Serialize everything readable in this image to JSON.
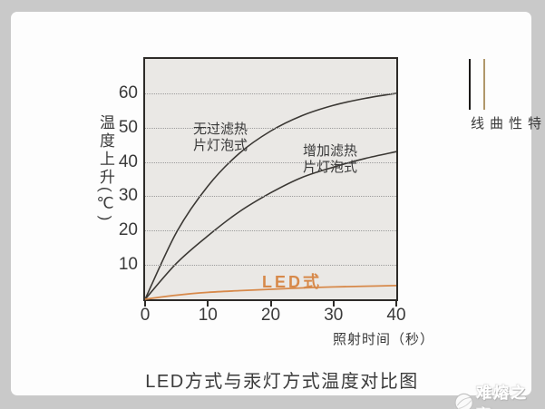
{
  "page": {
    "background": "#c9c9c9",
    "card_background": "#fdfdfd"
  },
  "chart_data": {
    "type": "line",
    "title": "LED方式与汞灯方式温度对比图",
    "xlabel": "照射时间（秒）",
    "ylabel": "温度上升(℃)",
    "xlim": [
      0,
      40
    ],
    "ylim": [
      0,
      70
    ],
    "xticks": [
      0,
      10,
      20,
      30,
      40
    ],
    "yticks": [
      10,
      20,
      30,
      40,
      50,
      60
    ],
    "grid": "horizontal-dotted",
    "plot_bg": "#eae8e5",
    "grid_color": "#9c9c9c",
    "axis_color": "#2d2b28",
    "x": [
      0,
      5,
      10,
      15,
      20,
      25,
      30,
      35,
      40
    ],
    "series": [
      {
        "name": "无过滤热片灯泡式",
        "color": "#3b3834",
        "values": [
          0,
          19.5,
          33,
          42.5,
          49,
          53.5,
          56.5,
          58.5,
          60
        ]
      },
      {
        "name": "增加滤热片灯泡式",
        "color": "#3b3834",
        "values": [
          0,
          10.5,
          18.5,
          25.5,
          31,
          35.5,
          38.5,
          41,
          43
        ]
      },
      {
        "name": "LED式",
        "color": "#d7894a",
        "values": [
          0,
          1.2,
          2.0,
          2.5,
          2.9,
          3.3,
          3.6,
          3.8,
          4.0
        ]
      }
    ],
    "legend_position": "right"
  },
  "labels": {
    "curve1_line1": "无过滤热",
    "curve1_line2": "片灯泡式",
    "curve2_line1": "增加滤热",
    "curve2_line2": "片灯泡式",
    "led": "LED式"
  },
  "legend": {
    "label": "特性曲线",
    "dark_line_color": "#1c1a18",
    "tan_line_color": "#b0976a"
  },
  "watermark": {
    "text": "难熔之窗"
  }
}
